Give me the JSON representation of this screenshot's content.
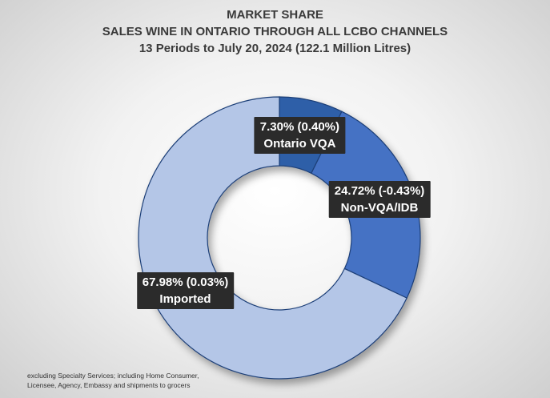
{
  "chart_data": {
    "type": "pie",
    "subtype": "donut",
    "title": "MARKET SHARE",
    "subtitle": "SALES WINE IN ONTARIO THROUGH ALL LCBO CHANNELS",
    "subtitle2": "13 Periods to July 20, 2024 (122.1 Million Litres)",
    "slices": [
      {
        "label": "Ontario VQA",
        "value": 7.3,
        "change": 0.4,
        "pct_text": "7.30% (0.40%)",
        "color": "#2e5fa8"
      },
      {
        "label": "Non-VQA/IDB",
        "value": 24.72,
        "change": -0.43,
        "pct_text": "24.72% (-0.43%)",
        "color": "#4472c4"
      },
      {
        "label": "Imported",
        "value": 67.98,
        "change": 0.03,
        "pct_text": "67.98% (0.03%)",
        "color": "#b4c6e7"
      }
    ],
    "footnote_line1": "excluding Specialty Services; including Home Consumer,",
    "footnote_line2": "Licensee, Agency, Embassy and shipments to grocers"
  }
}
